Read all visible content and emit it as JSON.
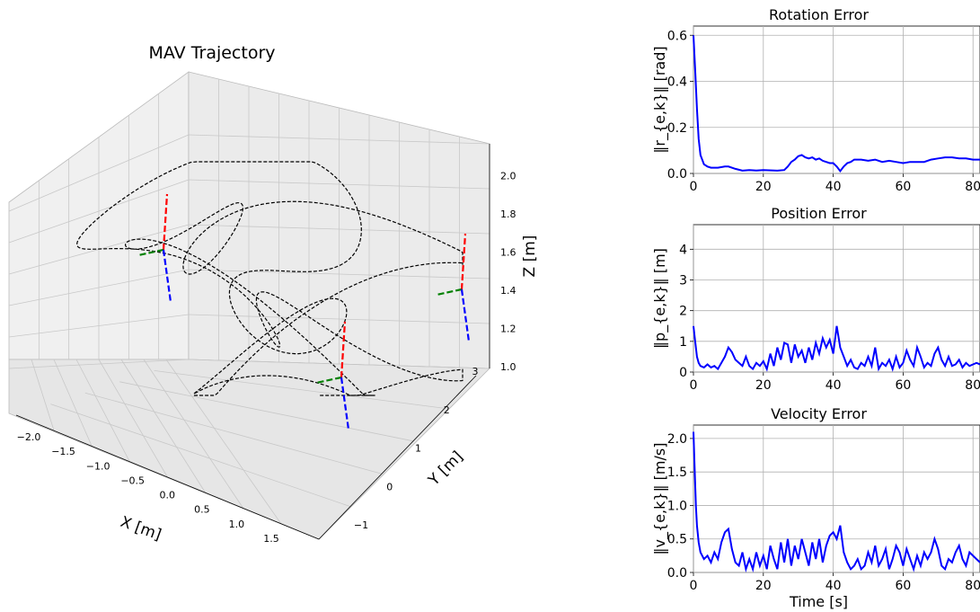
{
  "chart_data": [
    {
      "type": "line3d",
      "title": "MAV Trajectory",
      "xlabel": "X [m]",
      "ylabel": "Y [m]",
      "zlabel": "Z [m]",
      "xlim": [
        -2.2,
        1.9
      ],
      "ylim": [
        -1.6,
        3.2
      ],
      "zlim": [
        1.0,
        2.1
      ],
      "xticks": [
        "−2.0",
        "−1.5",
        "−1.0",
        "−0.5",
        "0.0",
        "0.5",
        "1.0",
        "1.5"
      ],
      "yticks": [
        "−1",
        "0",
        "1",
        "2",
        "3"
      ],
      "zticks": [
        "1.0",
        "1.2",
        "1.4",
        "1.6",
        "1.8",
        "2.0"
      ],
      "grid": true,
      "line_style": "dashed",
      "line_color": "#000000",
      "pose_frames": [
        {
          "x": -1.9,
          "y": 1.1,
          "z": 1.6,
          "axis_colors": [
            "#ff0000",
            "#008000",
            "#0000ff"
          ]
        },
        {
          "x": 1.6,
          "y": 2.5,
          "z": 1.3,
          "axis_colors": [
            "#ff0000",
            "#008000",
            "#0000ff"
          ]
        },
        {
          "x": 0.9,
          "y": 0.4,
          "z": 1.05,
          "axis_colors": [
            "#ff0000",
            "#008000",
            "#0000ff"
          ]
        }
      ]
    },
    {
      "type": "line",
      "title": "Rotation Error",
      "ylabel": "‖r_{e,k}‖ [rad]",
      "xlim": [
        0,
        82
      ],
      "ylim": [
        0,
        0.64
      ],
      "yticks": [
        "0.0",
        "0.2",
        "0.4",
        "0.6"
      ],
      "xticks": [
        "0",
        "20",
        "40",
        "60",
        "80"
      ],
      "series": [
        {
          "color": "#0000ff",
          "x": [
            0,
            0.5,
            1,
            1.5,
            2,
            3,
            4,
            5,
            7,
            9,
            10,
            12,
            14,
            16,
            18,
            20,
            24,
            26,
            27,
            28,
            29,
            30,
            31,
            32,
            33,
            34,
            35,
            36,
            37,
            38,
            39,
            40,
            41,
            42,
            43,
            44,
            45,
            46,
            48,
            50,
            52,
            54,
            56,
            58,
            60,
            62,
            64,
            66,
            68,
            70,
            72,
            74,
            76,
            78,
            80,
            82
          ],
          "y": [
            0.6,
            0.45,
            0.28,
            0.15,
            0.08,
            0.04,
            0.03,
            0.025,
            0.025,
            0.03,
            0.03,
            0.02,
            0.012,
            0.015,
            0.013,
            0.015,
            0.012,
            0.015,
            0.03,
            0.05,
            0.06,
            0.075,
            0.08,
            0.07,
            0.065,
            0.07,
            0.06,
            0.065,
            0.055,
            0.05,
            0.045,
            0.045,
            0.03,
            0.01,
            0.03,
            0.045,
            0.05,
            0.06,
            0.06,
            0.055,
            0.06,
            0.05,
            0.055,
            0.05,
            0.045,
            0.05,
            0.05,
            0.05,
            0.06,
            0.065,
            0.07,
            0.07,
            0.065,
            0.065,
            0.06,
            0.06
          ]
        }
      ]
    },
    {
      "type": "line",
      "title": "Position Error",
      "ylabel": "‖p_{e,k}‖ [m]",
      "xlim": [
        0,
        82
      ],
      "ylim": [
        0,
        4.8
      ],
      "yticks": [
        "0",
        "1",
        "2",
        "3",
        "4"
      ],
      "xticks": [
        "0",
        "20",
        "40",
        "60",
        "80"
      ],
      "series": [
        {
          "color": "#0000ff",
          "x": [
            0,
            0.5,
            1,
            1.5,
            2,
            3,
            4,
            5,
            6,
            7,
            8,
            9,
            10,
            11,
            12,
            13,
            14,
            15,
            16,
            17,
            18,
            19,
            20,
            21,
            22,
            23,
            24,
            25,
            26,
            27,
            28,
            29,
            30,
            31,
            32,
            33,
            34,
            35,
            36,
            37,
            38,
            39,
            40,
            41,
            42,
            43,
            44,
            45,
            46,
            47,
            48,
            49,
            50,
            51,
            52,
            53,
            54,
            55,
            56,
            57,
            58,
            59,
            60,
            61,
            62,
            63,
            64,
            65,
            66,
            67,
            68,
            69,
            70,
            71,
            72,
            73,
            74,
            75,
            76,
            77,
            78,
            79,
            80,
            81,
            82
          ],
          "y": [
            1.5,
            1.0,
            0.5,
            0.3,
            0.2,
            0.15,
            0.25,
            0.15,
            0.2,
            0.1,
            0.3,
            0.5,
            0.8,
            0.65,
            0.4,
            0.3,
            0.2,
            0.5,
            0.2,
            0.1,
            0.3,
            0.2,
            0.35,
            0.1,
            0.6,
            0.2,
            0.8,
            0.4,
            0.95,
            0.9,
            0.3,
            0.9,
            0.5,
            0.7,
            0.3,
            0.8,
            0.4,
            0.95,
            0.6,
            1.1,
            0.8,
            1.05,
            0.6,
            1.5,
            0.8,
            0.5,
            0.2,
            0.4,
            0.15,
            0.1,
            0.3,
            0.2,
            0.5,
            0.2,
            0.8,
            0.1,
            0.3,
            0.2,
            0.4,
            0.1,
            0.5,
            0.15,
            0.3,
            0.7,
            0.4,
            0.2,
            0.8,
            0.5,
            0.15,
            0.3,
            0.2,
            0.6,
            0.8,
            0.4,
            0.2,
            0.5,
            0.2,
            0.25,
            0.4,
            0.15,
            0.3,
            0.2,
            0.25,
            0.3,
            0.25
          ]
        }
      ]
    },
    {
      "type": "line",
      "title": "Velocity Error",
      "ylabel": "‖v_{e,k}‖ [m/s]",
      "xlabel": "Time [s]",
      "xlim": [
        0,
        82
      ],
      "ylim": [
        0,
        2.2
      ],
      "yticks": [
        "0.0",
        "0.5",
        "1.0",
        "1.5",
        "2.0"
      ],
      "xticks": [
        "0",
        "20",
        "40",
        "60",
        "80"
      ],
      "series": [
        {
          "color": "#0000ff",
          "x": [
            0,
            0.3,
            0.7,
            1,
            1.5,
            2,
            3,
            4,
            5,
            6,
            7,
            8,
            9,
            10,
            11,
            12,
            13,
            14,
            15,
            16,
            17,
            18,
            19,
            20,
            21,
            22,
            23,
            24,
            25,
            26,
            27,
            28,
            29,
            30,
            31,
            32,
            33,
            34,
            35,
            36,
            37,
            38,
            39,
            40,
            41,
            42,
            43,
            44,
            45,
            46,
            47,
            48,
            49,
            50,
            51,
            52,
            53,
            54,
            55,
            56,
            57,
            58,
            59,
            60,
            61,
            62,
            63,
            64,
            65,
            66,
            67,
            68,
            69,
            70,
            71,
            72,
            73,
            74,
            75,
            76,
            77,
            78,
            79,
            80,
            81,
            82
          ],
          "y": [
            2.1,
            1.6,
            1.0,
            0.7,
            0.45,
            0.3,
            0.2,
            0.25,
            0.15,
            0.3,
            0.2,
            0.45,
            0.6,
            0.65,
            0.35,
            0.15,
            0.1,
            0.3,
            0.05,
            0.2,
            0.05,
            0.3,
            0.1,
            0.25,
            0.05,
            0.4,
            0.2,
            0.05,
            0.45,
            0.15,
            0.5,
            0.1,
            0.4,
            0.2,
            0.5,
            0.3,
            0.1,
            0.45,
            0.2,
            0.5,
            0.15,
            0.4,
            0.55,
            0.6,
            0.5,
            0.7,
            0.3,
            0.15,
            0.05,
            0.1,
            0.2,
            0.05,
            0.1,
            0.3,
            0.15,
            0.4,
            0.1,
            0.2,
            0.35,
            0.05,
            0.2,
            0.4,
            0.3,
            0.1,
            0.35,
            0.2,
            0.05,
            0.25,
            0.1,
            0.3,
            0.2,
            0.3,
            0.5,
            0.35,
            0.1,
            0.05,
            0.2,
            0.15,
            0.3,
            0.4,
            0.2,
            0.1,
            0.3,
            0.25,
            0.2,
            0.15
          ]
        }
      ]
    }
  ]
}
